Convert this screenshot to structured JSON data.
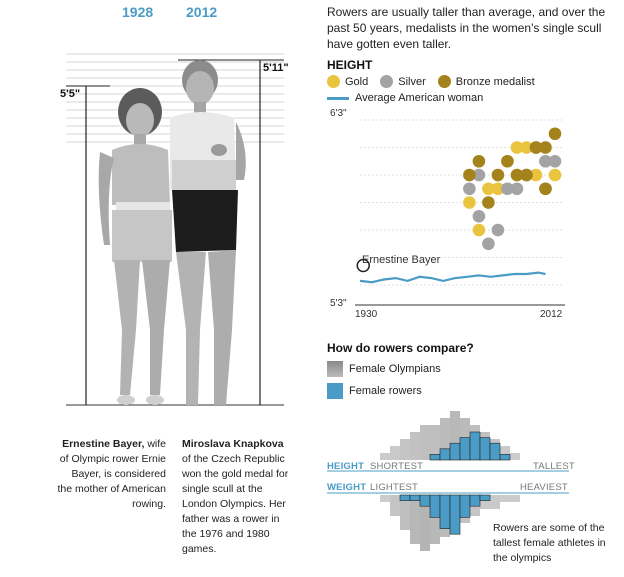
{
  "header": {
    "year_left": "1928",
    "year_right": "2012"
  },
  "photo": {
    "height_left": "5'5\"",
    "height_right": "5'11\""
  },
  "captions": {
    "left_name": "Ernestine Bayer,",
    "left_text": "wife of Olympic rower Ernie Bayer, is considered the mother of American rowing.",
    "right_name": "Miroslava Knapkova",
    "right_text": "of the Czech Republic won the gold medal for single scull at the London Olympics. Her father was a rower in the 1976 and 1980 games."
  },
  "intro": "Rowers are usually taller than average, and over the past 50 years, medalists in the women's single scull have gotten even taller.",
  "height_section": {
    "title": "HEIGHT",
    "legend": {
      "gold": "Gold",
      "silver": "Silver",
      "bronze": "Bronze medalist",
      "average": "Average American woman"
    },
    "y_top_label": "6'3\"",
    "y_bottom_label": "5'3\"",
    "x_left_label": "1930",
    "x_right_label": "2012",
    "annotation": "Ernestine Bayer"
  },
  "compare_section": {
    "title": "How do rowers compare?",
    "legend_olympians": "Female Olympians",
    "legend_rowers": "Female rowers",
    "height_title": "HEIGHT",
    "height_low": "SHORTEST",
    "height_high": "TALLEST",
    "weight_title": "WEIGHT",
    "weight_low": "LIGHTEST",
    "weight_high": "HEAVIEST",
    "note": "Rowers are some of the tallest female athletes in the olympics"
  },
  "colors": {
    "gold": "#eac43e",
    "silver": "#a3a3a3",
    "bronze": "#a4821c",
    "average": "#4a9cc6",
    "olympians": "#9e9e9e",
    "rowers": "#4a9cc6"
  },
  "chart_data": [
    {
      "type": "scatter",
      "title": "HEIGHT",
      "xlabel": "",
      "ylabel": "",
      "xlim": [
        1930,
        2012
      ],
      "ylim_inches": [
        63,
        75
      ],
      "y_tick_labels": [
        "5'3\"",
        "6'3\""
      ],
      "x_tick_labels": [
        "1930",
        "2012"
      ],
      "annotations": [
        {
          "text": "Ernestine Bayer",
          "year": 1928,
          "height_in": 65
        }
      ],
      "series": [
        {
          "name": "Gold",
          "points": [
            [
              1976,
              69
            ],
            [
              1980,
              67
            ],
            [
              1984,
              70
            ],
            [
              1988,
              70
            ],
            [
              1992,
              72
            ],
            [
              1996,
              73
            ],
            [
              2000,
              73
            ],
            [
              2004,
              73
            ],
            [
              2004,
              71
            ],
            [
              2008,
              72
            ],
            [
              2012,
              71
            ]
          ]
        },
        {
          "name": "Silver",
          "points": [
            [
              1976,
              70
            ],
            [
              1980,
              71
            ],
            [
              1980,
              68
            ],
            [
              1984,
              66
            ],
            [
              1988,
              67
            ],
            [
              1992,
              70
            ],
            [
              1996,
              70
            ],
            [
              2000,
              71
            ],
            [
              2004,
              73
            ],
            [
              2008,
              72
            ],
            [
              2008,
              70
            ],
            [
              2012,
              72
            ]
          ]
        },
        {
          "name": "Bronze medalist",
          "points": [
            [
              1976,
              71
            ],
            [
              1980,
              72
            ],
            [
              1984,
              69
            ],
            [
              1988,
              71
            ],
            [
              1992,
              72
            ],
            [
              1996,
              71
            ],
            [
              2000,
              71
            ],
            [
              2004,
              73
            ],
            [
              2008,
              73
            ],
            [
              2008,
              70
            ],
            [
              2012,
              74
            ]
          ]
        },
        {
          "name": "Average American woman",
          "line": [
            [
              1930,
              63.3
            ],
            [
              1935,
              63.2
            ],
            [
              1940,
              63.4
            ],
            [
              1945,
              63.5
            ],
            [
              1950,
              63.3
            ],
            [
              1955,
              63.6
            ],
            [
              1960,
              63.5
            ],
            [
              1965,
              63.3
            ],
            [
              1970,
              63.5
            ],
            [
              1975,
              63.6
            ],
            [
              1980,
              63.7
            ],
            [
              1985,
              63.6
            ],
            [
              1990,
              63.7
            ],
            [
              1995,
              63.8
            ],
            [
              2000,
              63.8
            ],
            [
              2005,
              63.9
            ],
            [
              2008,
              63.8
            ]
          ]
        }
      ]
    },
    {
      "type": "area",
      "title": "How do rowers compare?",
      "series": [
        {
          "name": "Female Olympians",
          "metric": "height",
          "values": [
            1,
            2,
            3,
            4,
            5,
            5,
            6,
            7,
            6,
            5,
            4,
            3,
            2,
            1
          ]
        },
        {
          "name": "Female rowers",
          "metric": "height",
          "values": [
            0,
            0,
            0,
            0,
            0,
            1,
            2,
            3,
            4,
            5,
            4,
            3,
            1,
            0
          ]
        },
        {
          "name": "Female Olympians",
          "metric": "weight",
          "values": [
            1,
            3,
            5,
            7,
            8,
            7,
            6,
            5,
            4,
            3,
            2,
            2,
            1,
            1
          ]
        },
        {
          "name": "Female rowers",
          "metric": "weight",
          "values": [
            0,
            0,
            1,
            1,
            2,
            4,
            6,
            7,
            4,
            2,
            1,
            0,
            0,
            0
          ]
        }
      ]
    }
  ]
}
